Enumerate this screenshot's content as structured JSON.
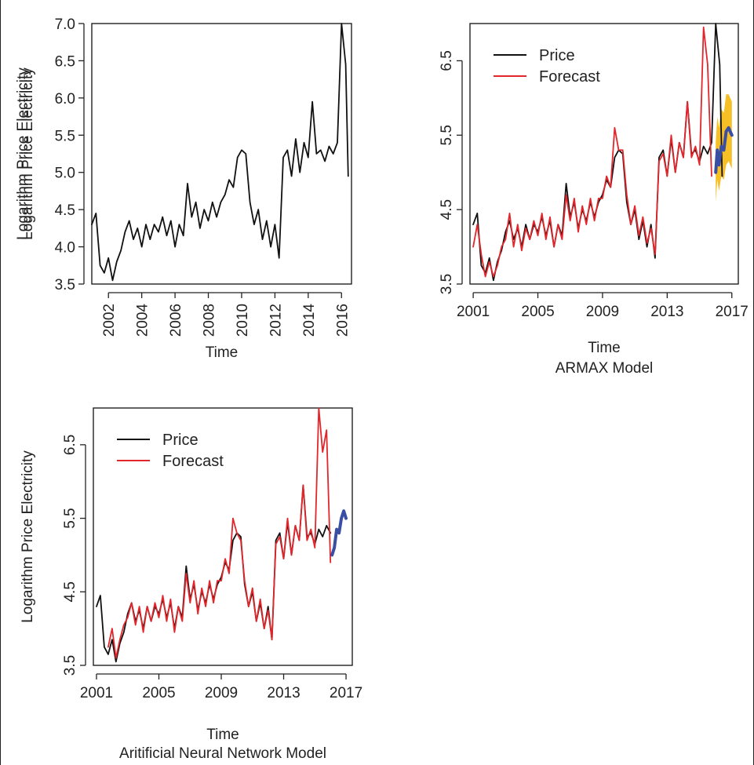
{
  "colors": {
    "price": "#111111",
    "forecast": "#e3262b",
    "projection": "#3a4fa3",
    "interval": "#f6b400"
  },
  "chart_data": [
    {
      "type": "line",
      "ylabel": "Logarithm Price Electricity",
      "xlabel": "Time",
      "xlim": [
        2001,
        2016.6
      ],
      "ylim": [
        3.5,
        7.0
      ],
      "yticks": [
        "3.5",
        "4.0",
        "4.5",
        "5.0",
        "5.5",
        "6.0",
        "6.5",
        "7.0"
      ],
      "xticks": [
        "2002",
        "2004",
        "2006",
        "2008",
        "2010",
        "2012",
        "2014",
        "2016"
      ],
      "xlabels_rotated": true,
      "series": [
        {
          "role": "price",
          "x": [
            2001.0,
            2001.25,
            2001.5,
            2001.75,
            2002.0,
            2002.25,
            2002.5,
            2002.75,
            2003.0,
            2003.25,
            2003.5,
            2003.75,
            2004.0,
            2004.25,
            2004.5,
            2004.75,
            2005.0,
            2005.25,
            2005.5,
            2005.75,
            2006.0,
            2006.25,
            2006.5,
            2006.75,
            2007.0,
            2007.25,
            2007.5,
            2007.75,
            2008.0,
            2008.25,
            2008.5,
            2008.75,
            2009.0,
            2009.25,
            2009.5,
            2009.75,
            2010.0,
            2010.25,
            2010.5,
            2010.75,
            2011.0,
            2011.25,
            2011.5,
            2011.75,
            2012.0,
            2012.25,
            2012.5,
            2012.75,
            2013.0,
            2013.25,
            2013.5,
            2013.75,
            2014.0,
            2014.25,
            2014.5,
            2014.75,
            2015.0,
            2015.25,
            2015.5,
            2015.75,
            2016.0,
            2016.25,
            2016.4
          ],
          "y": [
            4.3,
            4.45,
            3.75,
            3.65,
            3.85,
            3.55,
            3.8,
            3.95,
            4.2,
            4.35,
            4.1,
            4.25,
            4.0,
            4.3,
            4.1,
            4.3,
            4.2,
            4.4,
            4.15,
            4.35,
            4.0,
            4.3,
            4.15,
            4.85,
            4.4,
            4.6,
            4.25,
            4.5,
            4.35,
            4.6,
            4.4,
            4.6,
            4.7,
            4.9,
            4.8,
            5.2,
            5.3,
            5.25,
            4.6,
            4.3,
            4.5,
            4.1,
            4.35,
            4.0,
            4.3,
            3.85,
            5.2,
            5.3,
            4.95,
            5.45,
            5.0,
            5.4,
            5.2,
            5.95,
            5.25,
            5.3,
            5.15,
            5.35,
            5.25,
            5.4,
            7.0,
            6.45,
            4.95
          ]
        }
      ]
    },
    {
      "type": "line",
      "ylabel": "Logarithm Price Electricity",
      "xlabel": "Time",
      "subtitle": "ARMAX Model",
      "xlim": [
        2000.8,
        2017.4
      ],
      "ylim": [
        3.5,
        7.0
      ],
      "yticks": [
        "3.5",
        "4.5",
        "5.5",
        "6.5"
      ],
      "xticks": [
        "2001",
        "2005",
        "2009",
        "2013",
        "2017"
      ],
      "legend": [
        "Price",
        "Forecast"
      ],
      "legend_position": "top-left",
      "series": [
        {
          "name": "Price",
          "role": "price",
          "x": [
            2001.0,
            2001.25,
            2001.5,
            2001.75,
            2002.0,
            2002.25,
            2002.5,
            2002.75,
            2003.0,
            2003.25,
            2003.5,
            2003.75,
            2004.0,
            2004.25,
            2004.5,
            2004.75,
            2005.0,
            2005.25,
            2005.5,
            2005.75,
            2006.0,
            2006.25,
            2006.5,
            2006.75,
            2007.0,
            2007.25,
            2007.5,
            2007.75,
            2008.0,
            2008.25,
            2008.5,
            2008.75,
            2009.0,
            2009.25,
            2009.5,
            2009.75,
            2010.0,
            2010.25,
            2010.5,
            2010.75,
            2011.0,
            2011.25,
            2011.5,
            2011.75,
            2012.0,
            2012.25,
            2012.5,
            2012.75,
            2013.0,
            2013.25,
            2013.5,
            2013.75,
            2014.0,
            2014.25,
            2014.5,
            2014.75,
            2015.0,
            2015.25,
            2015.5,
            2015.75,
            2016.0,
            2016.25,
            2016.4
          ],
          "y": [
            4.3,
            4.45,
            3.75,
            3.65,
            3.85,
            3.55,
            3.8,
            3.95,
            4.2,
            4.35,
            4.1,
            4.25,
            4.0,
            4.3,
            4.1,
            4.3,
            4.2,
            4.4,
            4.15,
            4.35,
            4.0,
            4.3,
            4.15,
            4.85,
            4.4,
            4.6,
            4.25,
            4.5,
            4.35,
            4.6,
            4.4,
            4.6,
            4.7,
            4.9,
            4.8,
            5.2,
            5.3,
            5.25,
            4.6,
            4.3,
            4.5,
            4.1,
            4.35,
            4.0,
            4.3,
            3.85,
            5.2,
            5.3,
            4.95,
            5.45,
            5.0,
            5.4,
            5.2,
            5.95,
            5.25,
            5.3,
            5.15,
            5.35,
            5.25,
            5.4,
            7.0,
            6.45,
            4.95
          ]
        },
        {
          "name": "Forecast",
          "role": "forecast",
          "x": [
            2001.0,
            2001.25,
            2001.5,
            2001.75,
            2002.0,
            2002.25,
            2002.5,
            2002.75,
            2003.0,
            2003.25,
            2003.5,
            2003.75,
            2004.0,
            2004.25,
            2004.5,
            2004.75,
            2005.0,
            2005.25,
            2005.5,
            2005.75,
            2006.0,
            2006.25,
            2006.5,
            2006.75,
            2007.0,
            2007.25,
            2007.5,
            2007.75,
            2008.0,
            2008.25,
            2008.5,
            2008.75,
            2009.0,
            2009.25,
            2009.5,
            2009.75,
            2010.0,
            2010.25,
            2010.5,
            2010.75,
            2011.0,
            2011.25,
            2011.5,
            2011.75,
            2012.0,
            2012.25,
            2012.5,
            2012.75,
            2013.0,
            2013.25,
            2013.5,
            2013.75,
            2014.0,
            2014.25,
            2014.5,
            2014.75,
            2015.0,
            2015.25,
            2015.5,
            2015.75
          ],
          "y": [
            4.0,
            4.3,
            3.9,
            3.6,
            3.8,
            3.6,
            3.75,
            4.0,
            4.1,
            4.45,
            4.0,
            4.3,
            3.95,
            4.25,
            4.1,
            4.35,
            4.15,
            4.45,
            4.1,
            4.4,
            4.0,
            4.3,
            4.1,
            4.7,
            4.35,
            4.65,
            4.2,
            4.55,
            4.3,
            4.65,
            4.35,
            4.65,
            4.65,
            4.95,
            4.8,
            5.6,
            5.3,
            5.3,
            4.7,
            4.3,
            4.55,
            4.15,
            4.4,
            4.05,
            4.25,
            3.9,
            5.15,
            5.25,
            4.95,
            5.5,
            5.0,
            5.4,
            5.2,
            5.95,
            5.2,
            5.35,
            5.1,
            6.95,
            6.45,
            4.95
          ]
        },
        {
          "role": "projection",
          "x": [
            2016.0,
            2016.1,
            2016.2,
            2016.35,
            2016.5,
            2016.65,
            2016.8,
            2017.0
          ],
          "y": [
            5.0,
            5.3,
            5.1,
            5.35,
            5.3,
            5.55,
            5.6,
            5.5
          ]
        },
        {
          "role": "interval",
          "x": [
            2016.0,
            2016.1,
            2016.2,
            2016.35,
            2016.5,
            2016.65,
            2016.8,
            2017.0
          ],
          "lower": [
            4.6,
            4.9,
            4.75,
            4.95,
            4.9,
            5.1,
            5.15,
            5.05
          ],
          "upper": [
            5.4,
            5.75,
            5.6,
            5.85,
            5.8,
            6.05,
            6.05,
            5.95
          ]
        }
      ]
    },
    {
      "type": "line",
      "ylabel": "Logarithm Price Electricity",
      "xlabel": "Time",
      "subtitle": "Aritificial Neural Network Model",
      "xlim": [
        2000.8,
        2017.4
      ],
      "ylim": [
        3.5,
        7.0
      ],
      "yticks": [
        "3.5",
        "4.5",
        "5.5",
        "6.5"
      ],
      "xticks": [
        "2001",
        "2005",
        "2009",
        "2013",
        "2017"
      ],
      "legend": [
        "Price",
        "Forecast"
      ],
      "legend_position": "top-left",
      "series": [
        {
          "name": "Price",
          "role": "price",
          "x": [
            2001.0,
            2001.25,
            2001.5,
            2001.75,
            2002.0,
            2002.25,
            2002.5,
            2002.75,
            2003.0,
            2003.25,
            2003.5,
            2003.75,
            2004.0,
            2004.25,
            2004.5,
            2004.75,
            2005.0,
            2005.25,
            2005.5,
            2005.75,
            2006.0,
            2006.25,
            2006.5,
            2006.75,
            2007.0,
            2007.25,
            2007.5,
            2007.75,
            2008.0,
            2008.25,
            2008.5,
            2008.75,
            2009.0,
            2009.25,
            2009.5,
            2009.75,
            2010.0,
            2010.25,
            2010.5,
            2010.75,
            2011.0,
            2011.25,
            2011.5,
            2011.75,
            2012.0,
            2012.25,
            2012.5,
            2012.75,
            2013.0,
            2013.25,
            2013.5,
            2013.75,
            2014.0,
            2014.25,
            2014.5,
            2014.75,
            2015.0,
            2015.25,
            2015.5,
            2015.75,
            2016.0
          ],
          "y": [
            4.3,
            4.45,
            3.75,
            3.65,
            3.85,
            3.55,
            3.8,
            3.95,
            4.2,
            4.35,
            4.1,
            4.25,
            4.0,
            4.3,
            4.1,
            4.3,
            4.2,
            4.4,
            4.15,
            4.35,
            4.0,
            4.3,
            4.15,
            4.85,
            4.4,
            4.6,
            4.25,
            4.5,
            4.35,
            4.6,
            4.4,
            4.6,
            4.7,
            4.9,
            4.8,
            5.2,
            5.3,
            5.25,
            4.6,
            4.3,
            4.5,
            4.1,
            4.35,
            4.0,
            4.3,
            3.85,
            5.2,
            5.3,
            4.95,
            5.45,
            5.0,
            5.4,
            5.2,
            5.95,
            5.25,
            5.3,
            5.15,
            5.35,
            5.25,
            5.4,
            5.3
          ]
        },
        {
          "name": "Forecast",
          "role": "forecast",
          "x": [
            2001.75,
            2002.0,
            2002.25,
            2002.5,
            2002.75,
            2003.0,
            2003.25,
            2003.5,
            2003.75,
            2004.0,
            2004.25,
            2004.5,
            2004.75,
            2005.0,
            2005.25,
            2005.5,
            2005.75,
            2006.0,
            2006.25,
            2006.5,
            2006.75,
            2007.0,
            2007.25,
            2007.5,
            2007.75,
            2008.0,
            2008.25,
            2008.5,
            2008.75,
            2009.0,
            2009.25,
            2009.5,
            2009.75,
            2010.0,
            2010.25,
            2010.5,
            2010.75,
            2011.0,
            2011.25,
            2011.5,
            2011.75,
            2012.0,
            2012.25,
            2012.5,
            2012.75,
            2013.0,
            2013.25,
            2013.5,
            2013.75,
            2014.0,
            2014.25,
            2014.5,
            2014.75,
            2015.0,
            2015.25,
            2015.5,
            2015.75,
            2016.0
          ],
          "y": [
            3.75,
            4.0,
            3.6,
            3.85,
            4.05,
            4.15,
            4.35,
            4.05,
            4.3,
            3.95,
            4.3,
            4.1,
            4.35,
            4.15,
            4.45,
            4.1,
            4.4,
            3.95,
            4.3,
            4.1,
            4.75,
            4.35,
            4.65,
            4.2,
            4.55,
            4.3,
            4.65,
            4.35,
            4.65,
            4.65,
            4.95,
            4.75,
            5.5,
            5.3,
            5.2,
            4.65,
            4.3,
            4.55,
            4.1,
            4.4,
            4.0,
            4.25,
            3.85,
            5.15,
            5.25,
            4.95,
            5.5,
            5.0,
            5.4,
            5.2,
            5.95,
            5.2,
            5.35,
            5.1,
            7.0,
            6.4,
            6.7,
            4.9
          ]
        },
        {
          "role": "projection",
          "x": [
            2016.1,
            2016.25,
            2016.4,
            2016.55,
            2016.7,
            2016.85,
            2017.0
          ],
          "y": [
            5.0,
            5.1,
            5.35,
            5.3,
            5.5,
            5.6,
            5.5
          ]
        }
      ]
    }
  ]
}
